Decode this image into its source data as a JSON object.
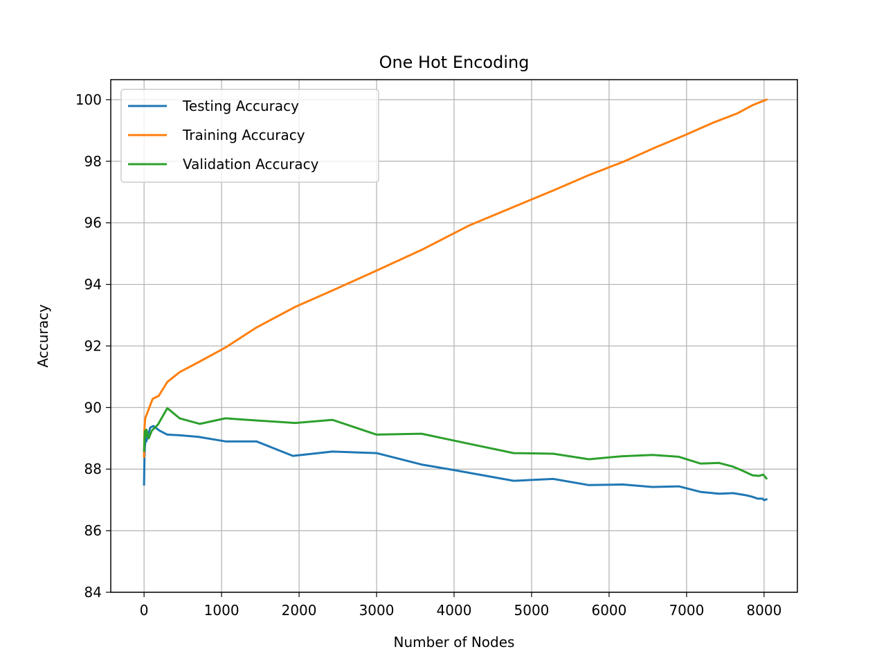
{
  "chart_data": {
    "type": "line",
    "title": "One Hot Encoding",
    "xlabel": "Number of Nodes",
    "ylabel": "Accuracy",
    "xlim": [
      -430,
      8430
    ],
    "ylim": [
      84,
      100.65
    ],
    "xticks": [
      0,
      1000,
      2000,
      3000,
      4000,
      5000,
      6000,
      7000,
      8000
    ],
    "yticks": [
      84,
      86,
      88,
      90,
      92,
      94,
      96,
      98,
      100
    ],
    "grid": true,
    "legend_position": "upper left",
    "series": [
      {
        "name": "Testing Accuracy",
        "color": "#1f77b4",
        "x": [
          0,
          5,
          10,
          20,
          30,
          50,
          80,
          120,
          200,
          300,
          450,
          700,
          1050,
          1450,
          1920,
          2430,
          3000,
          3580,
          4000,
          4770,
          5280,
          5740,
          6170,
          6560,
          6900,
          7180,
          7420,
          7600,
          7770,
          7850,
          7920,
          7980,
          8000,
          8030
        ],
        "y": [
          87.5,
          88.4,
          88.7,
          89.0,
          88.9,
          89.1,
          89.35,
          89.4,
          89.25,
          89.12,
          89.1,
          89.05,
          88.9,
          88.9,
          88.43,
          88.57,
          88.52,
          88.15,
          87.97,
          87.62,
          87.68,
          87.48,
          87.5,
          87.42,
          87.44,
          87.26,
          87.2,
          87.22,
          87.15,
          87.1,
          87.04,
          87.04,
          86.99,
          87.02
        ]
      },
      {
        "name": "Training Accuracy",
        "color": "#ff7f0e",
        "x": [
          0,
          5,
          15,
          30,
          60,
          110,
          190,
          300,
          460,
          700,
          1050,
          1450,
          1950,
          2430,
          3000,
          3580,
          4200,
          4800,
          5280,
          5740,
          6200,
          6600,
          6980,
          7340,
          7650,
          7850,
          8000,
          8030
        ],
        "y": [
          88.4,
          89.35,
          89.65,
          89.75,
          89.95,
          90.28,
          90.38,
          90.83,
          91.15,
          91.47,
          91.95,
          92.6,
          93.27,
          93.8,
          94.45,
          95.12,
          95.92,
          96.55,
          97.05,
          97.55,
          98.0,
          98.45,
          98.85,
          99.25,
          99.55,
          99.82,
          99.97,
          100.0
        ]
      },
      {
        "name": "Validation Accuracy",
        "color": "#2ca02c",
        "x": [
          0,
          5,
          10,
          20,
          30,
          60,
          100,
          180,
          300,
          460,
          720,
          1050,
          1450,
          1950,
          2430,
          3000,
          3580,
          4200,
          4770,
          5280,
          5740,
          6170,
          6560,
          6900,
          7180,
          7420,
          7600,
          7720,
          7850,
          7930,
          7990,
          8030
        ],
        "y": [
          88.6,
          88.95,
          89.25,
          89.05,
          89.28,
          89.0,
          89.25,
          89.45,
          89.98,
          89.65,
          89.47,
          89.65,
          89.58,
          89.5,
          89.6,
          89.12,
          89.15,
          88.82,
          88.52,
          88.5,
          88.32,
          88.42,
          88.46,
          88.4,
          88.18,
          88.2,
          88.08,
          87.95,
          87.8,
          87.78,
          87.82,
          87.7
        ]
      }
    ]
  }
}
